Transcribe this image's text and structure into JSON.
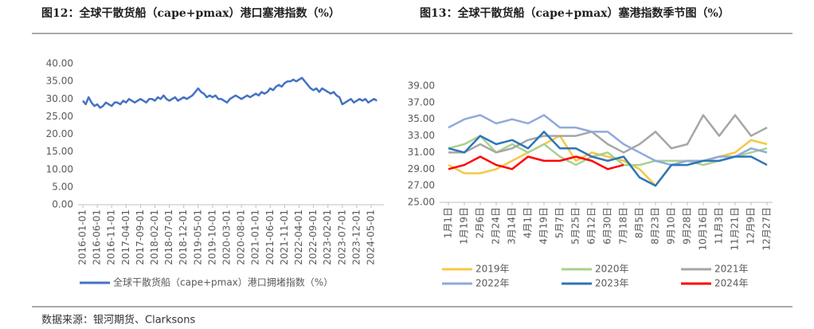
{
  "chart_data": [
    {
      "type": "line",
      "title": "图12：全球干散货船（cape+pmax）港口塞港指数（%）",
      "categories": [
        "2016-01-01",
        null,
        null,
        null,
        null,
        "2016-06-01",
        null,
        null,
        null,
        null,
        "2016-11-01",
        null,
        null,
        null,
        null,
        "2017-04-01",
        null,
        null,
        null,
        null,
        "2017-09-01",
        null,
        null,
        null,
        null,
        "2018-02-01",
        null,
        null,
        null,
        null,
        "2018-07-01",
        null,
        null,
        null,
        null,
        "2018-12-01",
        null,
        null,
        null,
        null,
        "2019-05-01",
        null,
        null,
        null,
        null,
        "2019-10-01",
        null,
        null,
        null,
        null,
        "2020-03-01",
        null,
        null,
        null,
        null,
        "2020-08-01",
        null,
        null,
        null,
        null,
        "2021-01-01",
        null,
        null,
        null,
        null,
        "2021-06-01",
        null,
        null,
        null,
        null,
        "2021-11-01",
        null,
        null,
        null,
        null,
        "2022-04-01",
        null,
        null,
        null,
        null,
        "2022-09-01",
        null,
        null,
        null,
        null,
        "2023-02-01",
        null,
        null,
        null,
        null,
        "2023-07-01",
        null,
        null,
        null,
        null,
        "2023-12-01",
        null,
        null,
        null,
        null,
        "2024-05-01",
        null,
        null
      ],
      "series": [
        {
          "name": "全球干散货船（cape+pmax）港口拥堵指数（%）",
          "color": "#4472c4",
          "values": [
            29.5,
            28.5,
            30.5,
            29,
            28,
            28.5,
            27.5,
            28,
            29,
            28.5,
            28,
            29,
            29,
            28.5,
            29.5,
            29,
            30,
            29.5,
            29,
            29.5,
            30,
            29.5,
            29,
            30,
            30,
            29.5,
            30.5,
            30,
            31,
            30,
            29.5,
            30,
            30.5,
            29.5,
            30,
            30.5,
            30,
            30.5,
            31,
            32,
            33,
            32,
            31.5,
            30.5,
            31,
            30.5,
            31,
            30,
            30,
            29.5,
            29,
            30,
            30.5,
            31,
            30.5,
            30,
            30.5,
            31,
            30.5,
            31,
            31.5,
            31,
            32,
            31.5,
            32,
            33,
            32.5,
            33.5,
            34,
            33.5,
            34.5,
            35,
            35,
            35.5,
            35,
            35.5,
            36,
            35,
            34,
            33,
            32.5,
            33,
            32,
            33,
            32.5,
            32,
            31.5,
            32,
            31,
            30.5,
            28.5,
            29,
            29.5,
            30,
            29,
            29.5,
            30,
            29.5,
            30,
            29,
            29.5,
            30,
            29.5
          ]
        }
      ],
      "ylim": [
        0,
        40
      ],
      "yticks": [
        {
          "value": 0,
          "label": "0.00"
        },
        {
          "value": 5,
          "label": "5.00"
        },
        {
          "value": 10,
          "label": "10.00"
        },
        {
          "value": 15,
          "label": "15.00"
        },
        {
          "value": 20,
          "label": "20.00"
        },
        {
          "value": 25,
          "label": "25.00"
        },
        {
          "value": 30,
          "label": "30.00"
        },
        {
          "value": 35,
          "label": "35.00"
        },
        {
          "value": 40,
          "label": "40.00"
        }
      ],
      "grid": false
    },
    {
      "type": "line",
      "title": "图13：全球干散货船（cape+pmax）塞港指数季节图（%）",
      "categories": [
        "1月1日",
        "1月19日",
        "2月6日",
        "2月24日",
        "3月14日",
        "4月1日",
        "4月19日",
        "5月7日",
        "5月25日",
        "6月12日",
        "6月30日",
        "7月18日",
        "8月5日",
        "8月23日",
        "9月10日",
        "9月28日",
        "10月16日",
        "11月3日",
        "11月21日",
        "12月9日",
        "12月27日"
      ],
      "series": [
        {
          "name": "2019年",
          "color": "#f5c842",
          "values": [
            29.5,
            28.5,
            28.5,
            29,
            30,
            31,
            32,
            33,
            30,
            31,
            30.5,
            30,
            29,
            27,
            29.5,
            30,
            30,
            30.5,
            31,
            32.5,
            32
          ]
        },
        {
          "name": "2020年",
          "color": "#a9d18e",
          "values": [
            31.5,
            32,
            33,
            31,
            32,
            31,
            32,
            30.5,
            29.5,
            30.5,
            31,
            29.5,
            29.5,
            30,
            30,
            30,
            29.5,
            30,
            30.5,
            31,
            31.5
          ]
        },
        {
          "name": "2021年",
          "color": "#a6a6a6",
          "values": [
            31,
            31,
            32,
            31,
            31.5,
            32.5,
            33,
            33,
            33,
            33.5,
            32,
            31,
            32,
            33.5,
            31.5,
            32,
            35.5,
            33,
            35.5,
            33,
            34
          ]
        },
        {
          "name": "2022年",
          "color": "#8faadc",
          "values": [
            34,
            35,
            35.5,
            34.5,
            35,
            34.5,
            35.5,
            34,
            34,
            33.5,
            33.5,
            32,
            31,
            30,
            29.5,
            30,
            30,
            30.5,
            30.5,
            31.5,
            31
          ]
        },
        {
          "name": "2023年",
          "color": "#2e75b6",
          "values": [
            31.5,
            31,
            33,
            32,
            32.5,
            31.5,
            33.5,
            31.5,
            31.5,
            30.5,
            30,
            30.5,
            28,
            27,
            29.5,
            29.5,
            30,
            30,
            30.5,
            30.5,
            29.5
          ]
        },
        {
          "name": "2024年",
          "color": "#ff0000",
          "values": [
            29,
            29.5,
            30.5,
            29.5,
            29,
            30.5,
            30,
            30,
            30.5,
            30,
            29,
            29.5,
            null,
            null,
            null,
            null,
            null,
            null,
            null,
            null,
            null
          ]
        }
      ],
      "ylim": [
        25,
        39
      ],
      "yticks": [
        {
          "value": 25,
          "label": "25.00"
        },
        {
          "value": 27,
          "label": "27.00"
        },
        {
          "value": 29,
          "label": "29.00"
        },
        {
          "value": 31,
          "label": "31.00"
        },
        {
          "value": 33,
          "label": "33.00"
        },
        {
          "value": 35,
          "label": "35.00"
        },
        {
          "value": 37,
          "label": "37.00"
        },
        {
          "value": 39,
          "label": "39.00"
        }
      ],
      "grid": false
    }
  ],
  "source": "数据来源：银河期货、Clarksons"
}
